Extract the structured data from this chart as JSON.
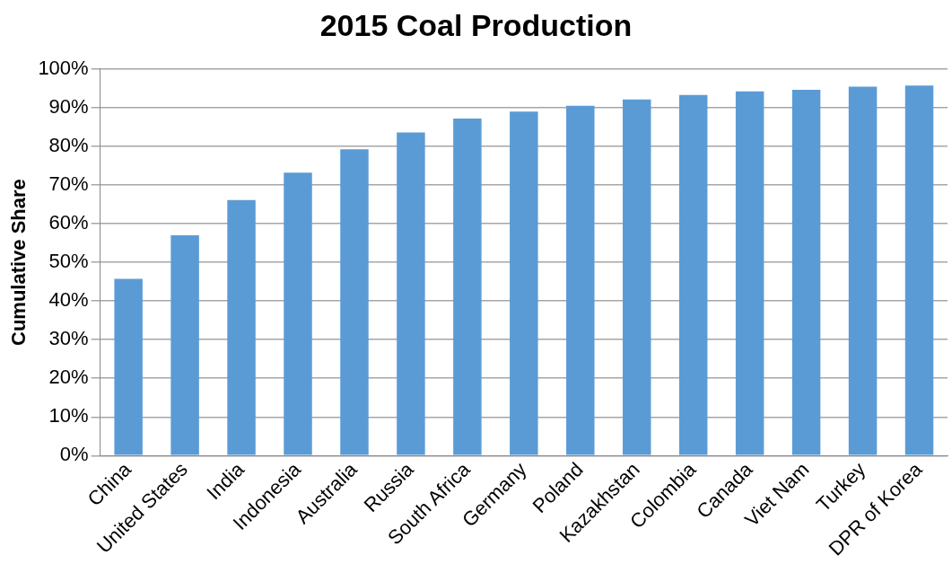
{
  "chart_data": {
    "type": "bar",
    "title": "2015 Coal Production",
    "ylabel": "Cumulative Share",
    "categories": [
      "China",
      "United States",
      "India",
      "Indonesia",
      "Australia",
      "Russia",
      "South Africa",
      "Germany",
      "Poland",
      "Kazakhstan",
      "Colombia",
      "Canada",
      "Viet Nam",
      "Turkey",
      "DPR of Korea"
    ],
    "values": [
      45.7,
      57.0,
      66.1,
      73.2,
      79.2,
      83.6,
      87.2,
      89.0,
      90.5,
      92.1,
      93.3,
      94.2,
      94.6,
      95.4,
      95.7
    ],
    "color": "#5b9bd5",
    "ylim": [
      0,
      100
    ],
    "yticks": [
      {
        "value": 0,
        "label": "0%"
      },
      {
        "value": 10,
        "label": "10%"
      },
      {
        "value": 20,
        "label": "20%"
      },
      {
        "value": 30,
        "label": "30%"
      },
      {
        "value": 40,
        "label": "40%"
      },
      {
        "value": 50,
        "label": "50%"
      },
      {
        "value": 60,
        "label": "60%"
      },
      {
        "value": 70,
        "label": "70%"
      },
      {
        "value": 80,
        "label": "80%"
      },
      {
        "value": 90,
        "label": "90%"
      },
      {
        "value": 100,
        "label": "100%"
      }
    ],
    "grid": "y",
    "legend": false
  }
}
